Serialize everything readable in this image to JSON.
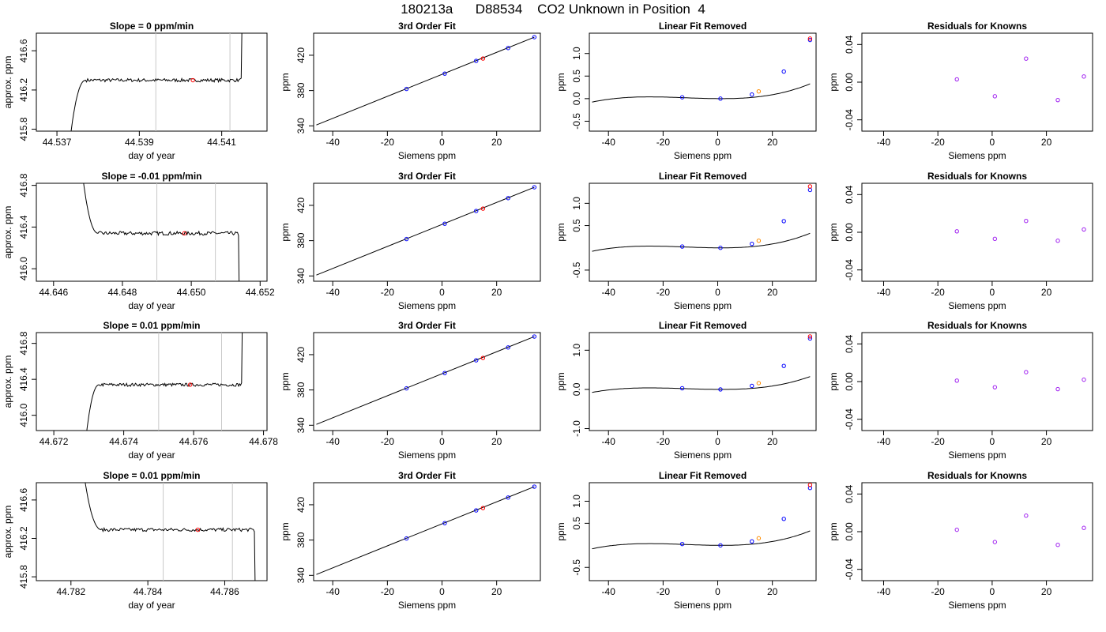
{
  "title": "180213a      D88534    CO2 Unknown in Position  4",
  "colors": {
    "data_line": "#000000",
    "window_line": "#c8c8c8",
    "unknown_marker": "#ff0000",
    "known_marker": "#0000ff",
    "unknown_fit_marker": "#ff8c00",
    "residual_marker": "#a020f0",
    "residual_ring": "#0000ff"
  },
  "rows": [
    {
      "timeseries": {
        "title": "Slope =  0  ppm/min",
        "xlabel": "day of year",
        "ylabel": "approx. ppm",
        "xlim": [
          44.5365,
          44.5421
        ],
        "ylim": [
          415.78,
          416.78
        ],
        "xticks": [
          44.537,
          44.539,
          44.541
        ],
        "yticks": [
          415.8,
          416.2,
          416.6
        ],
        "window": [
          44.5394,
          44.5412
        ],
        "marker": [
          44.5403,
          416.3
        ]
      },
      "fit": {
        "title": "3rd Order Fit",
        "xlabel": "Siemens ppm",
        "ylabel": "ppm",
        "xlim": [
          -47,
          36
        ],
        "ylim": [
          334,
          445
        ],
        "xticks": [
          -40,
          -20,
          0,
          20
        ],
        "yticks": [
          340,
          380,
          420
        ],
        "line": [
          [
            -46,
            341
          ],
          [
            33.8,
            440.5
          ]
        ],
        "knowns": [
          [
            -13,
            381.8
          ],
          [
            1,
            399.2
          ],
          [
            12.5,
            413.6
          ],
          [
            24.2,
            428.2
          ],
          [
            33.8,
            440.5
          ]
        ],
        "unknown": [
          15,
          416.3
        ]
      },
      "linear_removed": {
        "title": "Linear Fit Removed",
        "xlabel": "Siemens ppm",
        "ylabel": "ppm",
        "xlim": [
          -47,
          36
        ],
        "ylim": [
          -0.72,
          1.45
        ],
        "xticks": [
          -40,
          -20,
          0,
          20
        ],
        "yticks": [
          -0.5,
          0.0,
          0.5,
          1.0
        ],
        "ytick_labels": [
          "-0.5",
          "0.0",
          "0.5",
          "1.0"
        ],
        "cubic": [
          4.33e-06,
          0.0001533,
          -0.000433,
          0.0
        ],
        "knowns": [
          [
            -13,
            0.03
          ],
          [
            1,
            0.0
          ],
          [
            12.5,
            0.09
          ],
          [
            24.2,
            0.6
          ],
          [
            33.8,
            1.3
          ]
        ],
        "extra_red": [
          33.8,
          1.33
        ],
        "unknown": [
          15,
          0.16
        ]
      },
      "residuals": {
        "title": "Residuals for Knowns",
        "xlabel": "Siemens ppm",
        "ylabel": "ppm",
        "xlim": [
          -48,
          37
        ],
        "ylim": [
          -0.052,
          0.052
        ],
        "xticks": [
          -40,
          -20,
          0,
          20
        ],
        "yticks": [
          -0.04,
          0.0,
          0.04
        ],
        "ytick_labels": [
          "-0.04",
          "0.00",
          "0.04"
        ],
        "points": [
          [
            -13,
            0.003
          ],
          [
            1,
            -0.015
          ],
          [
            12.5,
            0.025
          ],
          [
            24.2,
            -0.019
          ],
          [
            33.8,
            0.006
          ]
        ]
      }
    },
    {
      "timeseries": {
        "title": "Slope =  -0.01  ppm/min",
        "xlabel": "day of year",
        "ylabel": "approx. ppm",
        "xlim": [
          44.6455,
          44.6522
        ],
        "ylim": [
          415.88,
          416.82
        ],
        "xticks": [
          44.646,
          44.648,
          44.65,
          44.652
        ],
        "yticks": [
          416.0,
          416.4,
          416.8
        ],
        "window": [
          44.649,
          44.6507
        ],
        "marker": [
          44.6498,
          416.34
        ]
      },
      "fit": {
        "title": "3rd Order Fit",
        "xlabel": "Siemens ppm",
        "ylabel": "ppm",
        "xlim": [
          -47,
          36
        ],
        "ylim": [
          334,
          445
        ],
        "xticks": [
          -40,
          -20,
          0,
          20
        ],
        "yticks": [
          340,
          380,
          420
        ],
        "line": [
          [
            -46,
            341
          ],
          [
            33.8,
            440.5
          ]
        ],
        "knowns": [
          [
            -13,
            381.8
          ],
          [
            1,
            399.2
          ],
          [
            12.5,
            413.6
          ],
          [
            24.2,
            428.2
          ],
          [
            33.8,
            440.5
          ]
        ],
        "unknown": [
          15,
          416.3
        ]
      },
      "linear_removed": {
        "title": "Linear Fit Removed",
        "xlabel": "Siemens ppm",
        "ylabel": "ppm",
        "xlim": [
          -47,
          36
        ],
        "ylim": [
          -0.75,
          1.45
        ],
        "xticks": [
          -40,
          -20,
          0,
          20
        ],
        "yticks": [
          -0.5,
          0.5,
          1.0
        ],
        "ytick_labels": [
          "-0.5",
          "0.5",
          "1.0"
        ],
        "cubic": [
          4.33e-06,
          0.0001533,
          -0.000433,
          0.0
        ],
        "knowns": [
          [
            -13,
            0.03
          ],
          [
            1,
            0.0
          ],
          [
            12.5,
            0.09
          ],
          [
            24.2,
            0.6
          ],
          [
            33.8,
            1.3
          ]
        ],
        "extra_red": [
          33.8,
          1.38
        ],
        "unknown": [
          15,
          0.16
        ]
      },
      "residuals": {
        "title": "Residuals for Knowns",
        "xlabel": "Siemens ppm",
        "ylabel": "ppm",
        "xlim": [
          -48,
          37
        ],
        "ylim": [
          -0.052,
          0.052
        ],
        "xticks": [
          -40,
          -20,
          0,
          20
        ],
        "yticks": [
          -0.04,
          0.0,
          0.04
        ],
        "ytick_labels": [
          "-0.04",
          "0.00",
          "0.04"
        ],
        "points": [
          [
            -13,
            0.001
          ],
          [
            1,
            -0.007
          ],
          [
            12.5,
            0.012
          ],
          [
            24.2,
            -0.009
          ],
          [
            33.8,
            0.003
          ]
        ]
      }
    },
    {
      "timeseries": {
        "title": "Slope =  0.01  ppm/min",
        "xlabel": "day of year",
        "ylabel": "approx. ppm",
        "xlim": [
          44.6715,
          44.6781
        ],
        "ylim": [
          415.83,
          416.92
        ],
        "xticks": [
          44.672,
          44.674,
          44.676,
          44.678
        ],
        "yticks": [
          416.0,
          416.4,
          416.8
        ],
        "window": [
          44.675,
          44.6768
        ],
        "marker": [
          44.6759,
          416.34
        ]
      },
      "fit": {
        "title": "3rd Order Fit",
        "xlabel": "Siemens ppm",
        "ylabel": "ppm",
        "xlim": [
          -47,
          36
        ],
        "ylim": [
          334,
          445
        ],
        "xticks": [
          -40,
          -20,
          0,
          20
        ],
        "yticks": [
          340,
          380,
          420
        ],
        "line": [
          [
            -46,
            341
          ],
          [
            33.8,
            440.5
          ]
        ],
        "knowns": [
          [
            -13,
            381.8
          ],
          [
            1,
            399.2
          ],
          [
            12.5,
            413.6
          ],
          [
            24.2,
            428.2
          ],
          [
            33.8,
            440.5
          ]
        ],
        "unknown": [
          15,
          416.3
        ]
      },
      "linear_removed": {
        "title": "Linear Fit Removed",
        "xlabel": "Siemens ppm",
        "ylabel": "ppm",
        "xlim": [
          -47,
          36
        ],
        "ylim": [
          -1.05,
          1.45
        ],
        "xticks": [
          -40,
          -20,
          0,
          20
        ],
        "yticks": [
          -1.0,
          0.0,
          1.0
        ],
        "ytick_labels": [
          "-1.0",
          "0.0",
          "1.0"
        ],
        "cubic": [
          4.33e-06,
          0.0001533,
          -0.000433,
          0.0
        ],
        "knowns": [
          [
            -13,
            0.03
          ],
          [
            1,
            0.0
          ],
          [
            12.5,
            0.09
          ],
          [
            24.2,
            0.6
          ],
          [
            33.8,
            1.3
          ]
        ],
        "extra_red": [
          33.8,
          1.35
        ],
        "unknown": [
          15,
          0.16
        ]
      },
      "residuals": {
        "title": "Residuals for Knowns",
        "xlabel": "Siemens ppm",
        "ylabel": "ppm",
        "xlim": [
          -48,
          37
        ],
        "ylim": [
          -0.052,
          0.052
        ],
        "xticks": [
          -40,
          -20,
          0,
          20
        ],
        "yticks": [
          -0.04,
          0.0,
          0.04
        ],
        "ytick_labels": [
          "-0.04",
          "0.00",
          "0.04"
        ],
        "points": [
          [
            -13,
            0.001
          ],
          [
            1,
            -0.006
          ],
          [
            12.5,
            0.01
          ],
          [
            24.2,
            -0.008
          ],
          [
            33.8,
            0.002
          ]
        ]
      }
    },
    {
      "timeseries": {
        "title": "Slope =  0.01  ppm/min",
        "xlabel": "day of year",
        "ylabel": "approx. ppm",
        "xlim": [
          44.7811,
          44.7871
        ],
        "ylim": [
          415.76,
          416.78
        ],
        "xticks": [
          44.782,
          44.784,
          44.786
        ],
        "yticks": [
          415.8,
          416.2,
          416.6
        ],
        "window": [
          44.7844,
          44.7862
        ],
        "marker": [
          44.7853,
          416.29
        ]
      },
      "fit": {
        "title": "3rd Order Fit",
        "xlabel": "Siemens ppm",
        "ylabel": "ppm",
        "xlim": [
          -47,
          36
        ],
        "ylim": [
          334,
          445
        ],
        "xticks": [
          -40,
          -20,
          0,
          20
        ],
        "yticks": [
          340,
          380,
          420
        ],
        "line": [
          [
            -46,
            341
          ],
          [
            33.8,
            440.5
          ]
        ],
        "knowns": [
          [
            -13,
            381.8
          ],
          [
            1,
            399.2
          ],
          [
            12.5,
            413.6
          ],
          [
            24.2,
            428.2
          ],
          [
            33.8,
            440.5
          ]
        ],
        "unknown": [
          15,
          416.3
        ]
      },
      "linear_removed": {
        "title": "Linear Fit Removed",
        "xlabel": "Siemens ppm",
        "ylabel": "ppm",
        "xlim": [
          -47,
          36
        ],
        "ylim": [
          -0.8,
          1.42
        ],
        "xticks": [
          -40,
          -20,
          0,
          20
        ],
        "yticks": [
          -0.5,
          0.5,
          1.0
        ],
        "ytick_labels": [
          "-0.5",
          "0.5",
          "1.0"
        ],
        "cubic": [
          4.33e-06,
          0.0001533,
          -0.000433,
          0.0
        ],
        "knowns": [
          [
            -13,
            0.03
          ],
          [
            1,
            0.0
          ],
          [
            12.5,
            0.09
          ],
          [
            24.2,
            0.6
          ],
          [
            33.8,
            1.3
          ]
        ],
        "extra_red": [
          33.8,
          1.37
        ],
        "unknown": [
          15,
          0.16
        ]
      },
      "residuals": {
        "title": "Residuals for Knowns",
        "xlabel": "Siemens ppm",
        "ylabel": "ppm",
        "xlim": [
          -48,
          37
        ],
        "ylim": [
          -0.052,
          0.052
        ],
        "xticks": [
          -40,
          -20,
          0,
          20
        ],
        "yticks": [
          -0.04,
          0.0,
          0.04
        ],
        "ytick_labels": [
          "-0.04",
          "0.00",
          "0.04"
        ],
        "points": [
          [
            -13,
            0.002
          ],
          [
            1,
            -0.011
          ],
          [
            12.5,
            0.017
          ],
          [
            24.2,
            -0.014
          ],
          [
            33.8,
            0.004
          ]
        ]
      }
    }
  ],
  "chart_data": [
    {
      "type": "line",
      "title": "Slope =  0  ppm/min",
      "xlabel": "day of year",
      "ylabel": "approx. ppm",
      "xlim": [
        44.5365,
        44.5421
      ],
      "ylim": [
        415.78,
        416.78
      ],
      "plateau_level": 416.3,
      "window": [
        44.5394,
        44.5412
      ]
    },
    {
      "type": "scatter",
      "title": "3rd Order Fit",
      "xlabel": "Siemens ppm",
      "ylabel": "ppm",
      "x": [
        -13,
        1,
        12.5,
        24.2,
        33.8
      ],
      "y": [
        381.8,
        399.2,
        413.6,
        428.2,
        440.5
      ],
      "unknown": [
        15,
        416.3
      ]
    },
    {
      "type": "line",
      "title": "Linear Fit Removed",
      "xlabel": "Siemens ppm",
      "ylabel": "ppm",
      "x": [
        -13,
        1,
        12.5,
        24.2,
        33.8
      ],
      "y": [
        0.03,
        0.0,
        0.09,
        0.6,
        1.3
      ]
    },
    {
      "type": "scatter",
      "title": "Residuals for Knowns",
      "xlabel": "Siemens ppm",
      "ylabel": "ppm",
      "x": [
        -13,
        1,
        12.5,
        24.2,
        33.8
      ],
      "y": [
        0.003,
        -0.015,
        0.025,
        -0.019,
        0.006
      ]
    },
    {
      "type": "line",
      "title": "Slope =  -0.01  ppm/min",
      "xlabel": "day of year",
      "ylabel": "approx. ppm",
      "xlim": [
        44.6455,
        44.6522
      ],
      "ylim": [
        415.88,
        416.82
      ],
      "plateau_level": 416.34,
      "window": [
        44.649,
        44.6507
      ]
    },
    {
      "type": "scatter",
      "title": "Residuals for Knowns",
      "xlabel": "Siemens ppm",
      "ylabel": "ppm",
      "x": [
        -13,
        1,
        12.5,
        24.2,
        33.8
      ],
      "y": [
        0.001,
        -0.007,
        0.012,
        -0.009,
        0.003
      ]
    },
    {
      "type": "line",
      "title": "Slope =  0.01  ppm/min",
      "xlabel": "day of year",
      "ylabel": "approx. ppm",
      "xlim": [
        44.6715,
        44.6781
      ],
      "ylim": [
        415.83,
        416.92
      ],
      "plateau_level": 416.34,
      "window": [
        44.675,
        44.6768
      ]
    },
    {
      "type": "scatter",
      "title": "Residuals for Knowns",
      "xlabel": "Siemens ppm",
      "ylabel": "ppm",
      "x": [
        -13,
        1,
        12.5,
        24.2,
        33.8
      ],
      "y": [
        0.001,
        -0.006,
        0.01,
        -0.008,
        0.002
      ]
    },
    {
      "type": "line",
      "title": "Slope =  0.01  ppm/min",
      "xlabel": "day of year",
      "ylabel": "approx. ppm",
      "xlim": [
        44.7811,
        44.7871
      ],
      "ylim": [
        415.76,
        416.78
      ],
      "plateau_level": 416.29,
      "window": [
        44.7844,
        44.7862
      ]
    },
    {
      "type": "scatter",
      "title": "Residuals for Knowns",
      "xlabel": "Siemens ppm",
      "ylabel": "ppm",
      "x": [
        -13,
        1,
        12.5,
        24.2,
        33.8
      ],
      "y": [
        0.002,
        -0.011,
        0.017,
        -0.014,
        0.004
      ]
    }
  ]
}
